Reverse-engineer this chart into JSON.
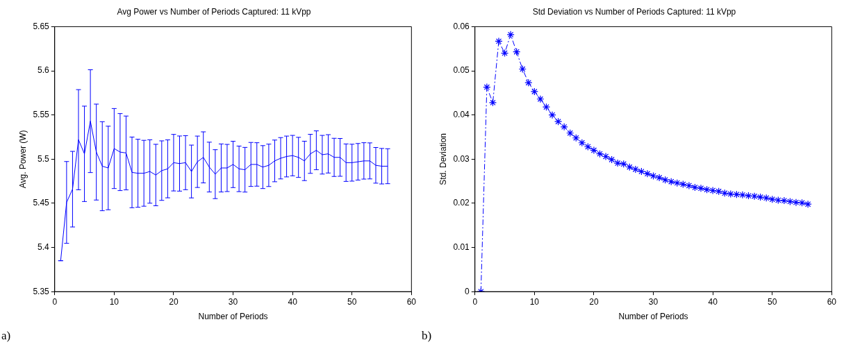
{
  "chart_data": [
    {
      "type": "line",
      "title": "Avg Power vs Number of Periods Captured: 11 kVpp",
      "xlabel": "Number of Periods",
      "ylabel": "Avg. Power (W)",
      "xlim": [
        0,
        60
      ],
      "xticks": [
        0,
        10,
        20,
        30,
        40,
        50,
        60
      ],
      "ylim": [
        5.35,
        5.65
      ],
      "yticks": [
        5.35,
        5.4,
        5.45,
        5.5,
        5.55,
        5.6,
        5.65
      ],
      "marker": "none",
      "line_style": "solid",
      "annotations": [
        "a)"
      ],
      "x": [
        1,
        2,
        3,
        4,
        5,
        6,
        7,
        8,
        9,
        10,
        11,
        12,
        13,
        14,
        15,
        16,
        17,
        18,
        19,
        20,
        21,
        22,
        23,
        24,
        25,
        26,
        27,
        28,
        29,
        30,
        31,
        32,
        33,
        34,
        35,
        36,
        37,
        38,
        39,
        40,
        41,
        42,
        43,
        44,
        45,
        46,
        47,
        48,
        49,
        50,
        51,
        52,
        53,
        54,
        55,
        56
      ],
      "series": [
        {
          "color": "#0000ff",
          "values": [
            5.385,
            5.451,
            5.466,
            5.522,
            5.506,
            5.543,
            5.508,
            5.492,
            5.49,
            5.512,
            5.508,
            5.507,
            5.485,
            5.484,
            5.484,
            5.486,
            5.482,
            5.487,
            5.489,
            5.496,
            5.495,
            5.496,
            5.486,
            5.497,
            5.502,
            5.491,
            5.483,
            5.49,
            5.49,
            5.494,
            5.489,
            5.488,
            5.494,
            5.494,
            5.491,
            5.493,
            5.498,
            5.501,
            5.503,
            5.504,
            5.502,
            5.498,
            5.506,
            5.51,
            5.505,
            5.506,
            5.502,
            5.502,
            5.496,
            5.496,
            5.497,
            5.498,
            5.498,
            5.493,
            5.492,
            5.492
          ],
          "errors": [
            0,
            0.0463,
            0.0428,
            0.0567,
            0.054,
            0.0582,
            0.0543,
            0.0504,
            0.0473,
            0.0453,
            0.0436,
            0.0418,
            0.04,
            0.0385,
            0.0373,
            0.0359,
            0.0348,
            0.0337,
            0.0328,
            0.032,
            0.0312,
            0.0306,
            0.0299,
            0.0291,
            0.0289,
            0.0282,
            0.0277,
            0.0272,
            0.0267,
            0.0262,
            0.0258,
            0.0253,
            0.0249,
            0.0246,
            0.0243,
            0.024,
            0.0236,
            0.0234,
            0.0231,
            0.0229,
            0.0227,
            0.0223,
            0.0221,
            0.022,
            0.0219,
            0.0217,
            0.0216,
            0.0214,
            0.0212,
            0.0209,
            0.0207,
            0.0206,
            0.0204,
            0.0202,
            0.0201,
            0.0198
          ]
        }
      ]
    },
    {
      "type": "line",
      "title": "Std Deviation vs Number of Periods Captured: 11 kVpp",
      "xlabel": "Number of Periods",
      "ylabel": "Std. Deviation",
      "xlim": [
        0,
        60
      ],
      "xticks": [
        0,
        10,
        20,
        30,
        40,
        50,
        60
      ],
      "ylim": [
        0,
        0.06
      ],
      "yticks": [
        0,
        0.01,
        0.02,
        0.03,
        0.04,
        0.05,
        0.06
      ],
      "marker": "cross",
      "line_style": "dashdot",
      "annotations": [
        "b)"
      ],
      "x": [
        1,
        2,
        3,
        4,
        5,
        6,
        7,
        8,
        9,
        10,
        11,
        12,
        13,
        14,
        15,
        16,
        17,
        18,
        19,
        20,
        21,
        22,
        23,
        24,
        25,
        26,
        27,
        28,
        29,
        30,
        31,
        32,
        33,
        34,
        35,
        36,
        37,
        38,
        39,
        40,
        41,
        42,
        43,
        44,
        45,
        46,
        47,
        48,
        49,
        50,
        51,
        52,
        53,
        54,
        55,
        56
      ],
      "series": [
        {
          "color": "#0000ff",
          "values": [
            0,
            0.0463,
            0.0428,
            0.0567,
            0.054,
            0.0582,
            0.0543,
            0.0504,
            0.0473,
            0.0453,
            0.0436,
            0.0418,
            0.04,
            0.0385,
            0.0373,
            0.0359,
            0.0348,
            0.0337,
            0.0328,
            0.032,
            0.0312,
            0.0306,
            0.0299,
            0.0291,
            0.0289,
            0.0282,
            0.0277,
            0.0272,
            0.0267,
            0.0262,
            0.0258,
            0.0253,
            0.0249,
            0.0246,
            0.0243,
            0.024,
            0.0236,
            0.0234,
            0.0231,
            0.0229,
            0.0227,
            0.0223,
            0.0221,
            0.022,
            0.0219,
            0.0217,
            0.0216,
            0.0214,
            0.0212,
            0.0209,
            0.0207,
            0.0206,
            0.0204,
            0.0202,
            0.0201,
            0.0198
          ]
        }
      ]
    }
  ]
}
